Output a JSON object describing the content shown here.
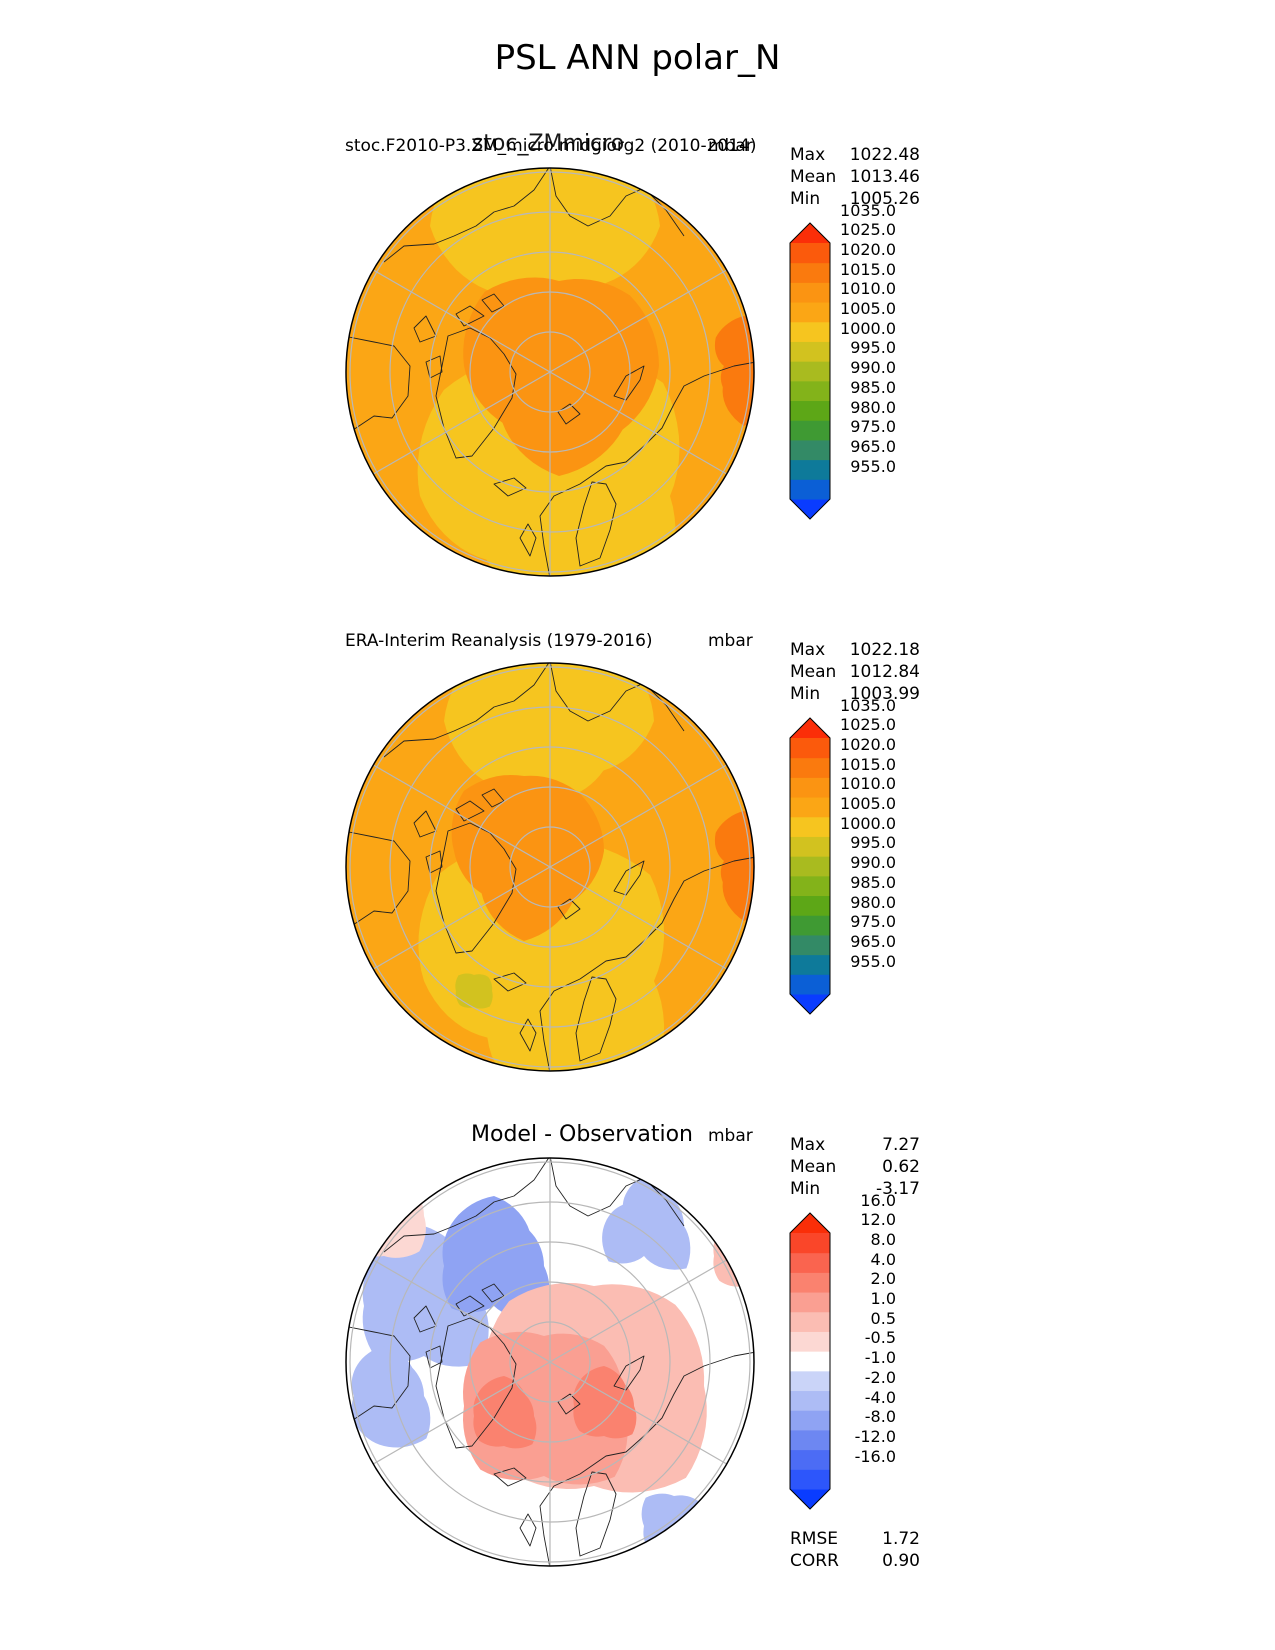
{
  "title": "PSL ANN polar_N",
  "panels": [
    {
      "id": "test",
      "title_left": "stoc.F2010-P3.ZM_micro.midgiorg2 (2010-2014)",
      "title_center": "stoc_ZMmicro",
      "units": "mbar",
      "stats": [
        {
          "label": "Max",
          "value": "1022.48"
        },
        {
          "label": "Mean",
          "value": "1013.46"
        },
        {
          "label": "Min",
          "value": "1005.26"
        }
      ],
      "colorbar": "abs"
    },
    {
      "id": "ref",
      "title_left": "ERA-Interim Reanalysis (1979-2016)",
      "title_center": "",
      "units": "mbar",
      "stats": [
        {
          "label": "Max",
          "value": "1022.18"
        },
        {
          "label": "Mean",
          "value": "1012.84"
        },
        {
          "label": "Min",
          "value": "1003.99"
        }
      ],
      "colorbar": "abs"
    },
    {
      "id": "diff",
      "title_left": "",
      "title_center": "Model - Observation",
      "units": "mbar",
      "stats": [
        {
          "label": "Max",
          "value": "7.27"
        },
        {
          "label": "Mean",
          "value": "0.62"
        },
        {
          "label": "Min",
          "value": "-3.17"
        }
      ],
      "colorbar": "diff",
      "metrics": [
        {
          "label": "RMSE",
          "value": "1.72"
        },
        {
          "label": "CORR",
          "value": "0.90"
        }
      ]
    }
  ],
  "colorbars": {
    "abs": {
      "levels": [
        "955.0",
        "965.0",
        "975.0",
        "980.0",
        "985.0",
        "990.0",
        "995.0",
        "1000.0",
        "1005.0",
        "1010.0",
        "1015.0",
        "1020.0",
        "1025.0",
        "1035.0"
      ],
      "colors": [
        "#0a3cff",
        "#0b5fd6",
        "#0e7a9a",
        "#338a66",
        "#3f9a33",
        "#5da717",
        "#83b31a",
        "#a9bb1f",
        "#d2c21f",
        "#f6c51f",
        "#fba615",
        "#fb9412",
        "#fa7a0e",
        "#fb5a0c",
        "#fb2e08"
      ]
    },
    "diff": {
      "levels": [
        "-16.0",
        "-12.0",
        "-8.0",
        "-4.0",
        "-2.0",
        "-1.0",
        "-0.5",
        "0.5",
        "1.0",
        "2.0",
        "4.0",
        "8.0",
        "12.0",
        "16.0"
      ],
      "colors": [
        "#0a3cff",
        "#2d56fb",
        "#4c6cf5",
        "#6d87f2",
        "#8fa3f3",
        "#adbcf5",
        "#cad4f8",
        "#ffffff",
        "#fcd8d3",
        "#fbbdb3",
        "#fa9f92",
        "#fa826f",
        "#fa644f",
        "#fa4629",
        "#fa2e08"
      ]
    }
  },
  "chart_data": [
    {
      "type": "heatmap",
      "title": "stoc_ZMmicro",
      "projection": "north polar stereographic",
      "variable": "PSL",
      "units": "mbar",
      "max": 1022.48,
      "mean": 1013.46,
      "min": 1005.26,
      "field_description_values": {
        "arctic_center": 1020,
        "north_atlantic": 1012,
        "north_pacific": 1012,
        "siberia": 1018,
        "north_america": 1016,
        "greenland": 1018
      }
    },
    {
      "type": "heatmap",
      "title": "ERA-Interim Reanalysis (1979-2016)",
      "projection": "north polar stereographic",
      "variable": "PSL",
      "units": "mbar",
      "max": 1022.18,
      "mean": 1012.84,
      "min": 1003.99,
      "field_description_values": {
        "arctic_center": 1016,
        "north_atlantic": 1008,
        "north_pacific": 1010,
        "siberia": 1020,
        "north_america": 1016,
        "greenland": 1016
      }
    },
    {
      "type": "heatmap",
      "title": "Model - Observation",
      "projection": "north polar stereographic",
      "variable": "PSL difference",
      "units": "mbar",
      "max": 7.27,
      "mean": 0.62,
      "min": -3.17,
      "rmse": 1.72,
      "corr": 0.9
    }
  ]
}
